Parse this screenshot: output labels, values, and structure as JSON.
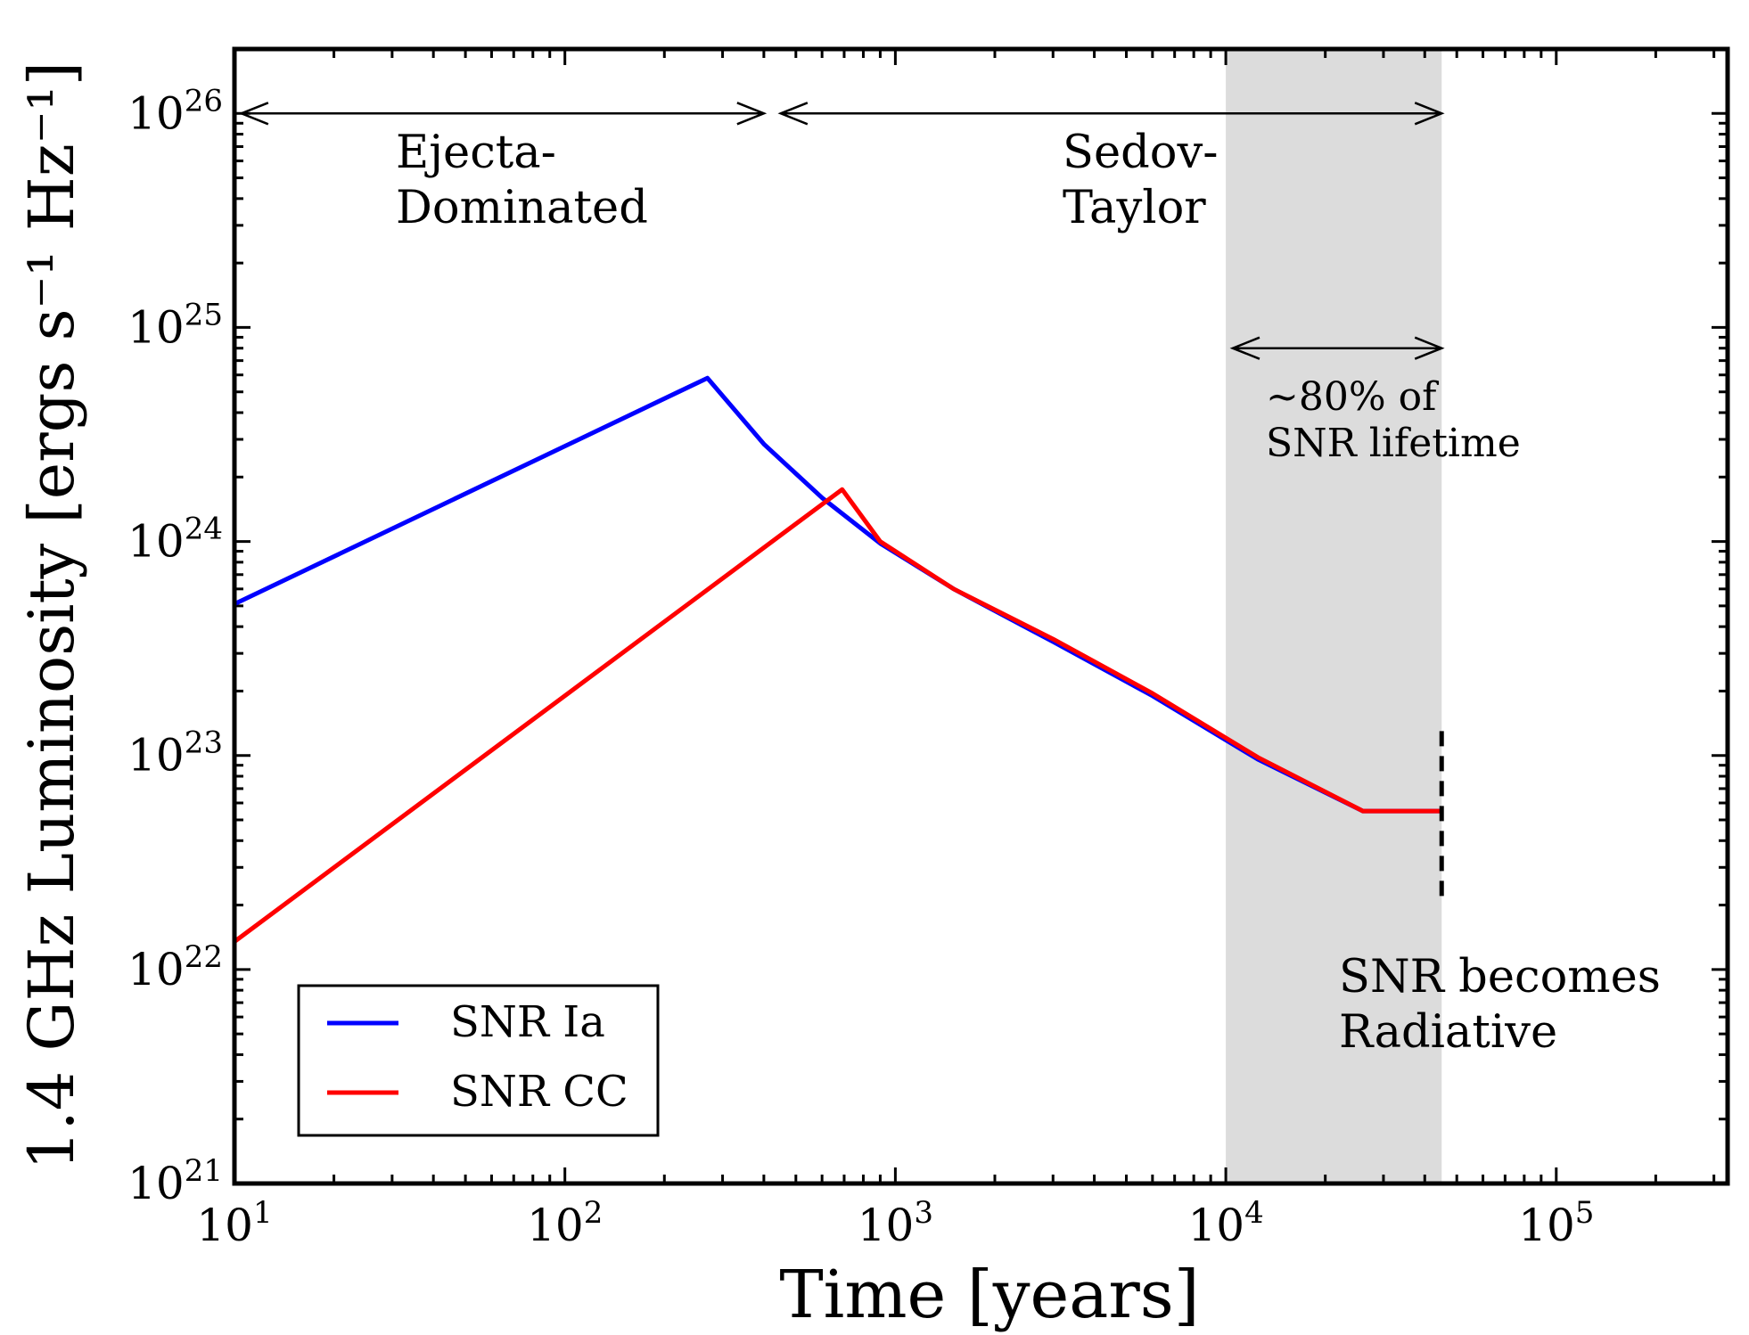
{
  "chart_data": {
    "type": "line",
    "xlabel": "Time [years]",
    "ylabel": "1.4 GHz Luminosity [ergs s⁻¹ Hz⁻¹]",
    "xscale": "log",
    "yscale": "log",
    "xlim": [
      10,
      330000
    ],
    "ylim": [
      1e+21,
      2e+26
    ],
    "x_ticks": [
      {
        "value": 10,
        "base": "10",
        "exp": "1"
      },
      {
        "value": 100,
        "base": "10",
        "exp": "2"
      },
      {
        "value": 1000,
        "base": "10",
        "exp": "3"
      },
      {
        "value": 10000,
        "base": "10",
        "exp": "4"
      },
      {
        "value": 100000,
        "base": "10",
        "exp": "5"
      }
    ],
    "y_ticks": [
      {
        "value": 1e+21,
        "base": "10",
        "exp": "21"
      },
      {
        "value": 1e+22,
        "base": "10",
        "exp": "22"
      },
      {
        "value": 1e+23,
        "base": "10",
        "exp": "23"
      },
      {
        "value": 1e+24,
        "base": "10",
        "exp": "24"
      },
      {
        "value": 1e+25,
        "base": "10",
        "exp": "25"
      },
      {
        "value": 1e+26,
        "base": "10",
        "exp": "26"
      }
    ],
    "grid": false,
    "legend_position": "lower-left",
    "series": [
      {
        "name": "SNR Ia",
        "color": "#0000ff",
        "points": [
          [
            10,
            5.1e+23
          ],
          [
            270,
            5.8e+24
          ],
          [
            400,
            2.85e+24
          ],
          [
            600,
            1.6e+24
          ],
          [
            900,
            9.8e+23
          ],
          [
            1500,
            6e+23
          ],
          [
            3000,
            3.4e+23
          ],
          [
            6000,
            1.9e+23
          ],
          [
            12500,
            9.6e+22
          ],
          [
            26000,
            5.5e+22
          ],
          [
            45000,
            5.5e+22
          ]
        ]
      },
      {
        "name": "SNR CC",
        "color": "#ff0000",
        "points": [
          [
            10,
            1.35e+22
          ],
          [
            690,
            1.75e+24
          ],
          [
            900,
            1e+24
          ],
          [
            1500,
            6e+23
          ],
          [
            3000,
            3.5e+23
          ],
          [
            6000,
            1.95e+23
          ],
          [
            12500,
            9.8e+22
          ],
          [
            26000,
            5.5e+22
          ],
          [
            45000,
            5.5e+22
          ]
        ]
      }
    ],
    "shaded_region": {
      "x": [
        10000,
        45000
      ],
      "color": "#dcdcdc"
    },
    "radiative_marker": {
      "x": 45000,
      "y_range": [
        2.1e+22,
        1.3e+23
      ],
      "style": "dashed",
      "color": "#000000"
    },
    "annotations": {
      "ejecta": {
        "lines": [
          "Ejecta-",
          "Dominated"
        ],
        "arrow_x": [
          10.5,
          400
        ],
        "arrow_y": 1e+26
      },
      "sedov": {
        "lines": [
          "Sedov-",
          "Taylor"
        ],
        "arrow_x": [
          450,
          45000
        ],
        "arrow_y": 1e+26
      },
      "lifetime": {
        "lines": [
          "~80% of",
          "SNR lifetime"
        ],
        "arrow_x": [
          10500,
          45000
        ],
        "arrow_y": 8e+24
      },
      "radiative": {
        "lines": [
          "SNR becomes",
          "Radiative"
        ]
      }
    }
  }
}
